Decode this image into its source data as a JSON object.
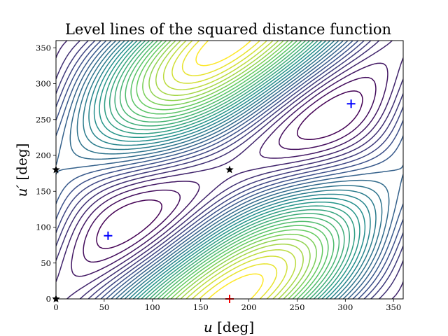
{
  "chart_data": {
    "type": "contour",
    "title": "Level lines of the squared distance function",
    "xlabel": {
      "var": "u",
      "unit": " [deg]"
    },
    "ylabel": {
      "var": "u′",
      "unit": " [deg]"
    },
    "xlim": [
      0,
      360
    ],
    "ylim": [
      0,
      360
    ],
    "xticks": [
      0,
      50,
      100,
      150,
      200,
      250,
      300,
      350
    ],
    "yticks": [
      0,
      50,
      100,
      150,
      200,
      250,
      300,
      350
    ],
    "colormap": "viridis",
    "grid": false,
    "legend": "none",
    "levels": 30,
    "markers": [
      {
        "kind": "minimum",
        "symbol": "plus",
        "color": "#0000ff",
        "x": 54,
        "y": 88
      },
      {
        "kind": "minimum",
        "symbol": "plus",
        "color": "#0000ff",
        "x": 306,
        "y": 272
      },
      {
        "kind": "maximum",
        "symbol": "plus",
        "color": "#ff0000",
        "x": 180,
        "y": 0
      },
      {
        "kind": "saddle",
        "symbol": "star",
        "color": "#000000",
        "x": 180,
        "y": 180
      },
      {
        "kind": "saddle",
        "symbol": "star",
        "color": "#000000",
        "x": 0,
        "y": 180
      },
      {
        "kind": "saddle",
        "symbol": "star",
        "color": "#000000",
        "x": 0,
        "y": 0
      }
    ]
  }
}
